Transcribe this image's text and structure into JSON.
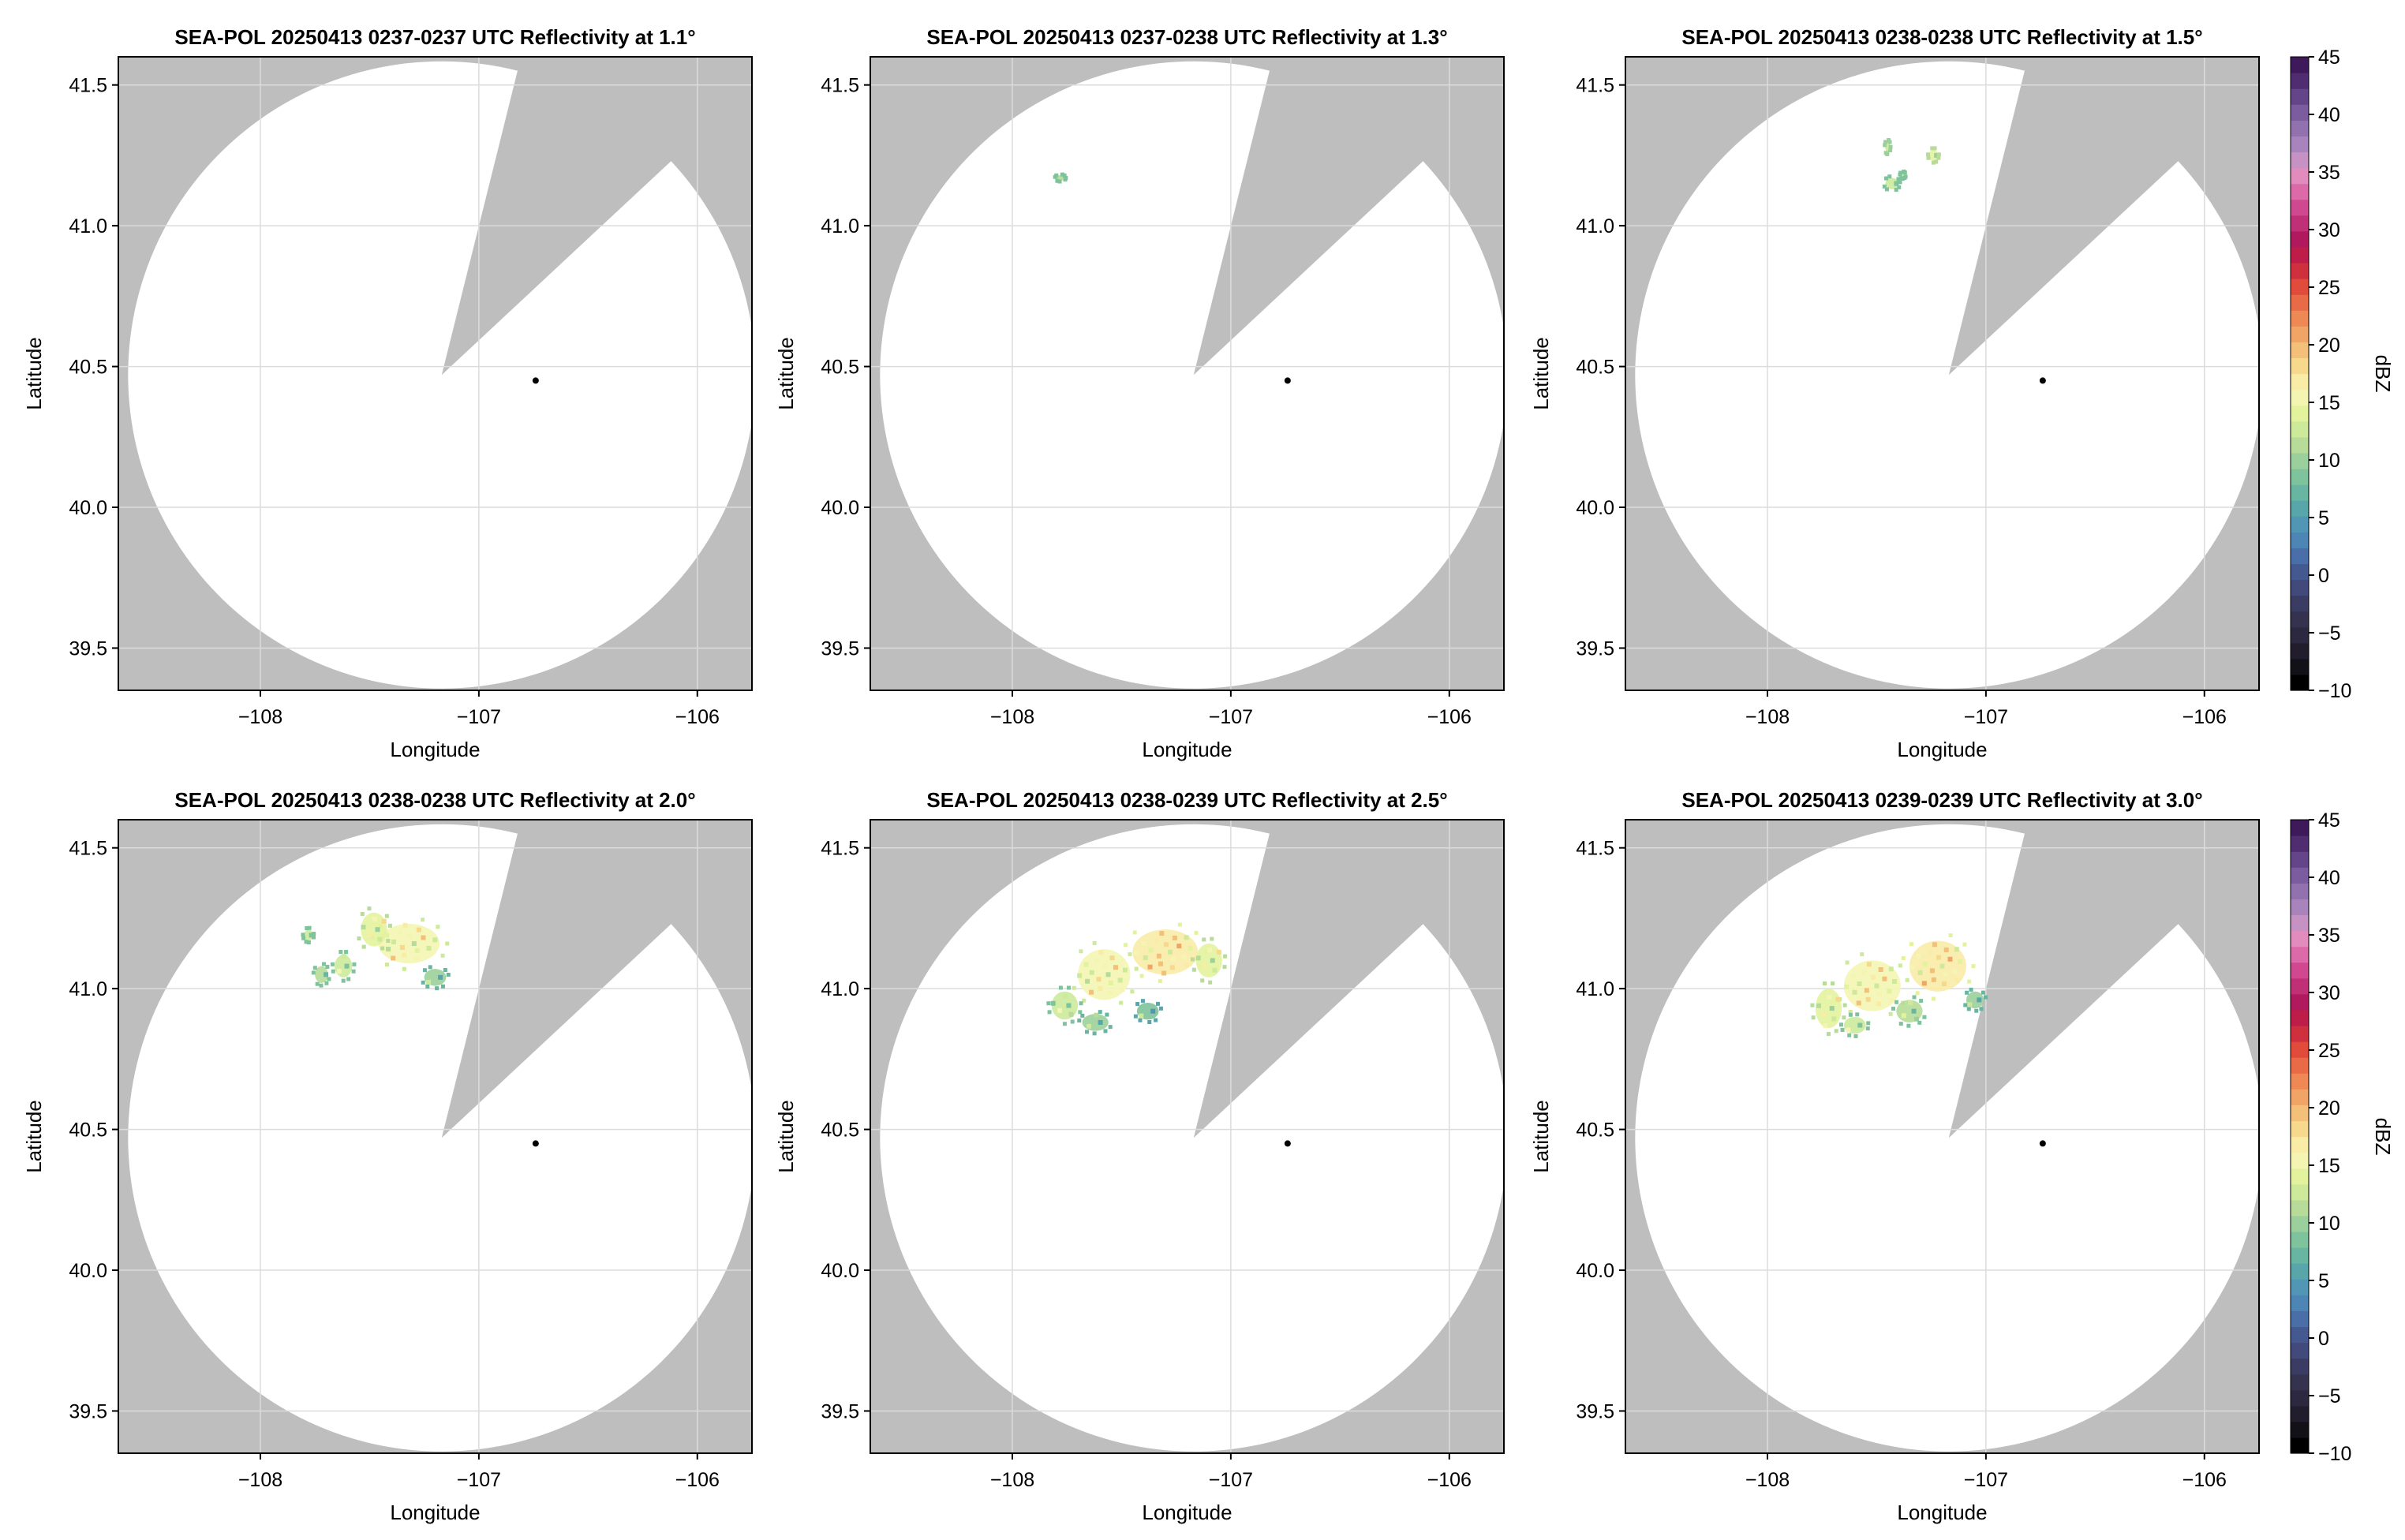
{
  "chart_data": [
    {
      "type": "radar_ppi",
      "title": "SEA-POL 20250413 0237-0237 UTC Reflectivity at 1.1°",
      "xlabel": "Longitude",
      "ylabel": "Latitude",
      "xlim": [
        -108.65,
        -105.75
      ],
      "ylim": [
        39.35,
        41.6
      ],
      "xticks": [
        -108,
        -107,
        -106
      ],
      "xtick_labels": [
        "−108",
        "−107",
        "−106"
      ],
      "yticks": [
        39.5,
        40.0,
        40.5,
        41.0,
        41.5
      ],
      "ytick_labels": [
        "39.5",
        "40.0",
        "40.5",
        "41.0",
        "41.5"
      ],
      "radar_site": [
        -106.74,
        40.45
      ],
      "echoes": []
    },
    {
      "type": "radar_ppi",
      "title": "SEA-POL 20250413 0237-0238 UTC Reflectivity at 1.3°",
      "xlabel": "Longitude",
      "ylabel": "Latitude",
      "xlim": [
        -108.65,
        -105.75
      ],
      "ylim": [
        39.35,
        41.6
      ],
      "xticks": [
        -108,
        -107,
        -106
      ],
      "xtick_labels": [
        "−108",
        "−107",
        "−106"
      ],
      "yticks": [
        39.5,
        40.0,
        40.5,
        41.0,
        41.5
      ],
      "ytick_labels": [
        "39.5",
        "40.0",
        "40.5",
        "41.0",
        "41.5"
      ],
      "radar_site": [
        -106.74,
        40.45
      ],
      "echoes": [
        [
          -107.78,
          41.17,
          0.02,
          0.01,
          11
        ]
      ]
    },
    {
      "type": "radar_ppi",
      "title": "SEA-POL 20250413 0238-0238 UTC Reflectivity at 1.5°",
      "xlabel": "Longitude",
      "ylabel": "Latitude",
      "xlim": [
        -108.65,
        -105.75
      ],
      "ylim": [
        39.35,
        41.6
      ],
      "xticks": [
        -108,
        -107,
        -106
      ],
      "xtick_labels": [
        "−108",
        "−107",
        "−106"
      ],
      "yticks": [
        39.5,
        40.0,
        40.5,
        41.0,
        41.5
      ],
      "ytick_labels": [
        "39.5",
        "40.0",
        "40.5",
        "41.0",
        "41.5"
      ],
      "radar_site": [
        -106.74,
        40.45
      ],
      "echoes": [
        [
          -107.45,
          41.28,
          0.01,
          0.02,
          13
        ],
        [
          -107.43,
          41.15,
          0.03,
          0.02,
          12
        ],
        [
          -107.24,
          41.25,
          0.02,
          0.02,
          14
        ],
        [
          -107.38,
          41.18,
          0.01,
          0.01,
          12
        ]
      ]
    },
    {
      "type": "radar_ppi",
      "title": "SEA-POL 20250413 0238-0238 UTC Reflectivity at 2.0°",
      "xlabel": "Longitude",
      "ylabel": "Latitude",
      "xlim": [
        -108.65,
        -105.75
      ],
      "ylim": [
        39.35,
        41.6
      ],
      "xticks": [
        -108,
        -107,
        -106
      ],
      "xtick_labels": [
        "−108",
        "−107",
        "−106"
      ],
      "yticks": [
        39.5,
        40.0,
        40.5,
        41.0,
        41.5
      ],
      "ytick_labels": [
        "39.5",
        "40.0",
        "40.5",
        "41.0",
        "41.5"
      ],
      "radar_site": [
        -106.74,
        40.45
      ],
      "echoes": [
        [
          -107.32,
          41.16,
          0.14,
          0.07,
          15
        ],
        [
          -107.48,
          41.21,
          0.06,
          0.06,
          14
        ],
        [
          -107.62,
          41.08,
          0.04,
          0.04,
          12
        ],
        [
          -107.72,
          41.05,
          0.03,
          0.03,
          11
        ],
        [
          -107.2,
          41.04,
          0.05,
          0.03,
          10
        ],
        [
          -107.78,
          41.19,
          0.02,
          0.02,
          12
        ]
      ]
    },
    {
      "type": "radar_ppi",
      "title": "SEA-POL 20250413 0238-0239 UTC Reflectivity at 2.5°",
      "xlabel": "Longitude",
      "ylabel": "Latitude",
      "xlim": [
        -108.65,
        -105.75
      ],
      "ylim": [
        39.35,
        41.6
      ],
      "xticks": [
        -108,
        -107,
        -106
      ],
      "xtick_labels": [
        "−108",
        "−107",
        "−106"
      ],
      "yticks": [
        39.5,
        40.0,
        40.5,
        41.0,
        41.5
      ],
      "ytick_labels": [
        "39.5",
        "40.0",
        "40.5",
        "41.0",
        "41.5"
      ],
      "radar_site": [
        -106.74,
        40.45
      ],
      "echoes": [
        [
          -107.3,
          41.13,
          0.15,
          0.08,
          17
        ],
        [
          -107.58,
          41.05,
          0.12,
          0.09,
          15
        ],
        [
          -107.76,
          40.94,
          0.06,
          0.05,
          12
        ],
        [
          -107.62,
          40.88,
          0.06,
          0.03,
          10
        ],
        [
          -107.38,
          40.92,
          0.05,
          0.03,
          9
        ],
        [
          -107.1,
          41.1,
          0.06,
          0.06,
          14
        ]
      ]
    },
    {
      "type": "radar_ppi",
      "title": "SEA-POL 20250413 0239-0239 UTC Reflectivity at 3.0°",
      "xlabel": "Longitude",
      "ylabel": "Latitude",
      "xlim": [
        -108.65,
        -105.75
      ],
      "ylim": [
        39.35,
        41.6
      ],
      "xticks": [
        -108,
        -107,
        -106
      ],
      "xtick_labels": [
        "−108",
        "−107",
        "−106"
      ],
      "yticks": [
        39.5,
        40.0,
        40.5,
        41.0,
        41.5
      ],
      "ytick_labels": [
        "39.5",
        "40.0",
        "40.5",
        "41.0",
        "41.5"
      ],
      "radar_site": [
        -106.74,
        40.45
      ],
      "echoes": [
        [
          -107.22,
          41.08,
          0.13,
          0.09,
          17
        ],
        [
          -107.52,
          41.01,
          0.13,
          0.09,
          16
        ],
        [
          -107.72,
          40.93,
          0.06,
          0.07,
          14
        ],
        [
          -107.35,
          40.92,
          0.06,
          0.04,
          11
        ],
        [
          -107.05,
          40.96,
          0.04,
          0.03,
          10
        ],
        [
          -107.6,
          40.87,
          0.05,
          0.03,
          12
        ]
      ]
    }
  ],
  "colorbar": {
    "label": "dBZ",
    "range": [
      -10,
      45
    ],
    "ticks": [
      -10,
      -5,
      0,
      5,
      10,
      15,
      20,
      25,
      30,
      35,
      40,
      45
    ],
    "tick_labels": [
      "−10",
      "−5",
      "0",
      "5",
      "10",
      "15",
      "20",
      "25",
      "30",
      "35",
      "40",
      "45"
    ],
    "colors": [
      "#000000",
      "#131118",
      "#221d2c",
      "#2c283f",
      "#35324f",
      "#3b3c63",
      "#414a7a",
      "#455991",
      "#4a6fa8",
      "#4d85b5",
      "#5196b4",
      "#58a6aa",
      "#68b5a1",
      "#7ec39b",
      "#9bcf9b",
      "#b7db98",
      "#ccea9a",
      "#e3f39d",
      "#f4f5b3",
      "#f8eca7",
      "#f6d98d",
      "#f2c078",
      "#f0a567",
      "#ee8955",
      "#e96a47",
      "#e04b3c",
      "#d02f3e",
      "#bd1d48",
      "#b0195d",
      "#c03076",
      "#d0488f",
      "#dc69a8",
      "#e18cbd",
      "#c592c3",
      "#a883bc",
      "#9172ae",
      "#7b5c9f",
      "#654589",
      "#4f2d70",
      "#3f1a5a"
    ]
  },
  "colors": {
    "background_gray": "#bebebe",
    "coverage": "#ffffff",
    "grid": "#dcdcdc"
  }
}
